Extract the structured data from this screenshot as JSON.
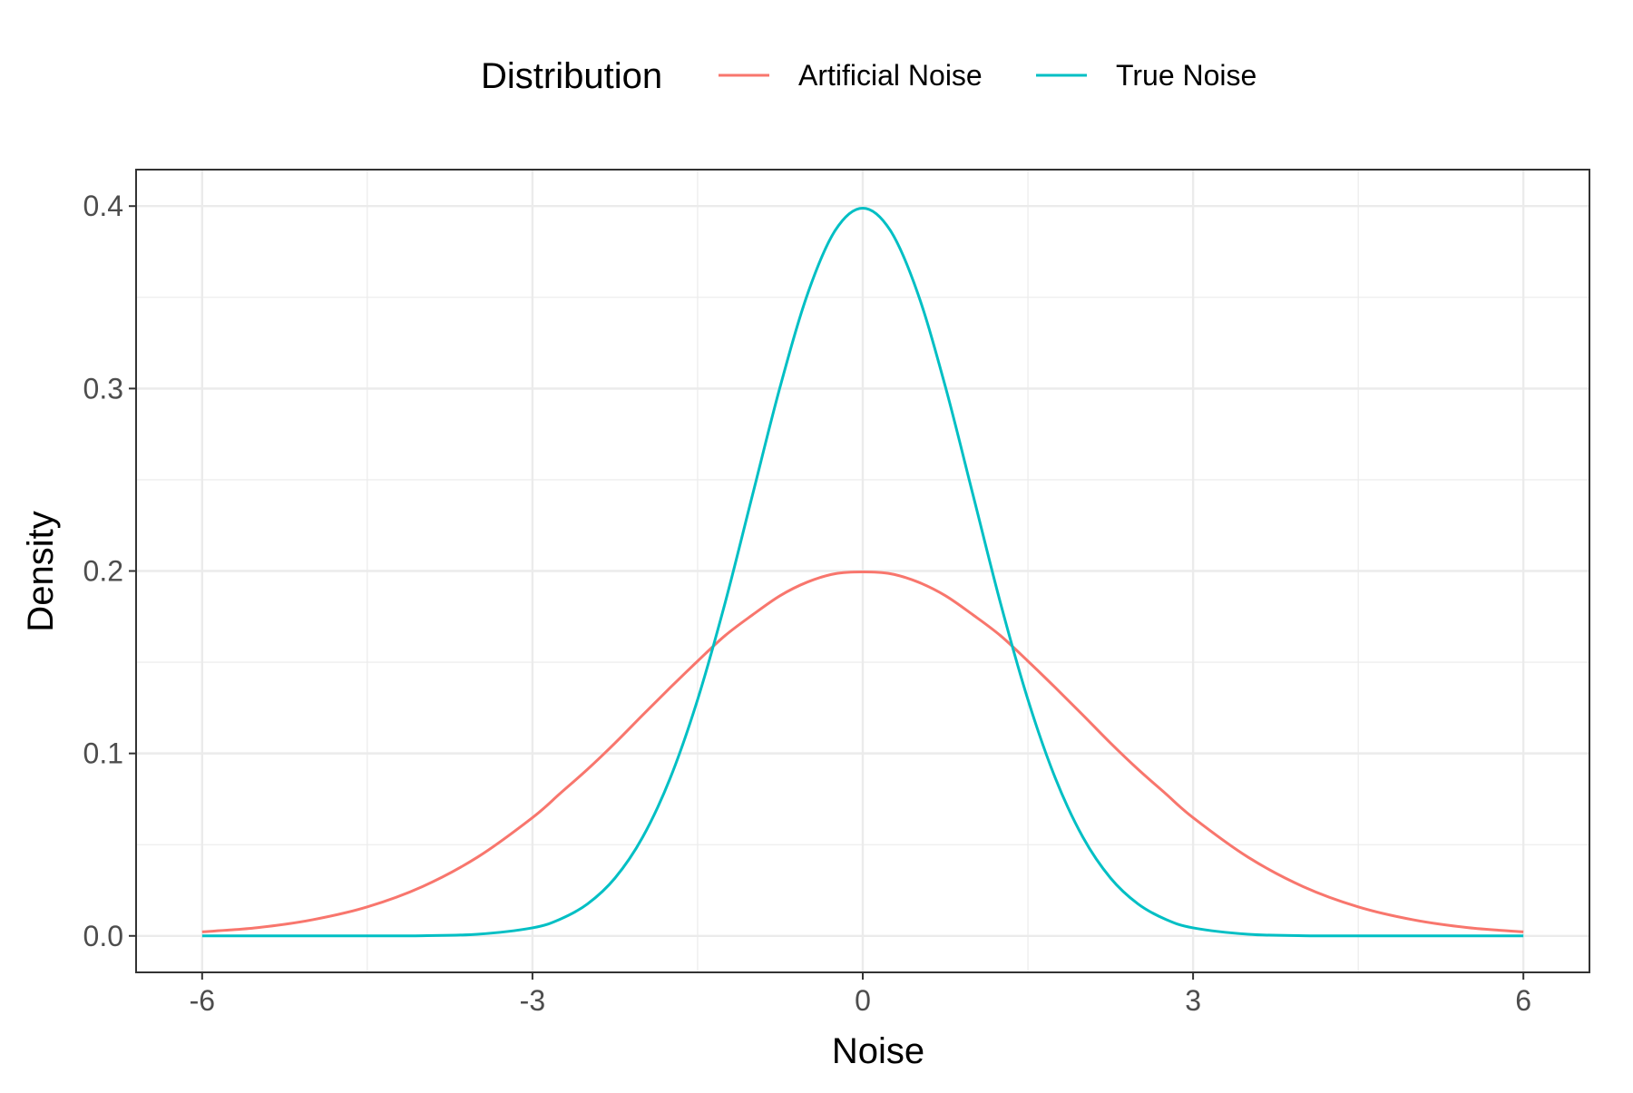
{
  "chart_data": {
    "type": "line",
    "title": "",
    "xlabel": "Noise",
    "ylabel": "Density",
    "xlim": [
      -6.6,
      6.6
    ],
    "ylim": [
      -0.02,
      0.42
    ],
    "x_ticks": [
      -6,
      -3,
      0,
      3,
      6
    ],
    "x_tick_labels": [
      "-6",
      "-3",
      "0",
      "3",
      "6"
    ],
    "y_ticks": [
      0.0,
      0.1,
      0.2,
      0.3,
      0.4
    ],
    "y_tick_labels": [
      "0.0",
      "0.1",
      "0.2",
      "0.3",
      "0.4"
    ],
    "grid": true,
    "legend": {
      "title": "Distribution",
      "position": "top"
    },
    "x": [
      -6.0,
      -5.5,
      -5.0,
      -4.5,
      -4.0,
      -3.5,
      -3.0,
      -2.75,
      -2.5,
      -2.25,
      -2.0,
      -1.75,
      -1.5,
      -1.25,
      -1.0,
      -0.75,
      -0.5,
      -0.25,
      0.0,
      0.25,
      0.5,
      0.75,
      1.0,
      1.25,
      1.5,
      1.75,
      2.0,
      2.25,
      2.5,
      2.75,
      3.0,
      3.5,
      4.0,
      4.5,
      5.0,
      5.5,
      6.0
    ],
    "series": [
      {
        "name": "Artificial Noise",
        "color": "#F8766D",
        "values": [
          0.0022,
          0.0045,
          0.0088,
          0.0159,
          0.027,
          0.0431,
          0.0648,
          0.078,
          0.0913,
          0.1057,
          0.121,
          0.136,
          0.1506,
          0.1646,
          0.176,
          0.1865,
          0.194,
          0.1985,
          0.1995,
          0.1985,
          0.194,
          0.1865,
          0.176,
          0.1646,
          0.1506,
          0.136,
          0.121,
          0.1057,
          0.0913,
          0.078,
          0.0648,
          0.0431,
          0.027,
          0.0159,
          0.0088,
          0.0045,
          0.0022
        ]
      },
      {
        "name": "True Noise",
        "color": "#00BFC4",
        "values": [
          0.0,
          0.0,
          0.0,
          0.0,
          0.0001,
          0.0009,
          0.0044,
          0.0091,
          0.0175,
          0.0317,
          0.054,
          0.0863,
          0.1295,
          0.1826,
          0.242,
          0.3011,
          0.3521,
          0.3867,
          0.3989,
          0.3867,
          0.3521,
          0.3011,
          0.242,
          0.1826,
          0.1295,
          0.0863,
          0.054,
          0.0317,
          0.0175,
          0.0091,
          0.0044,
          0.0009,
          0.0001,
          0.0,
          0.0,
          0.0,
          0.0
        ]
      }
    ]
  }
}
